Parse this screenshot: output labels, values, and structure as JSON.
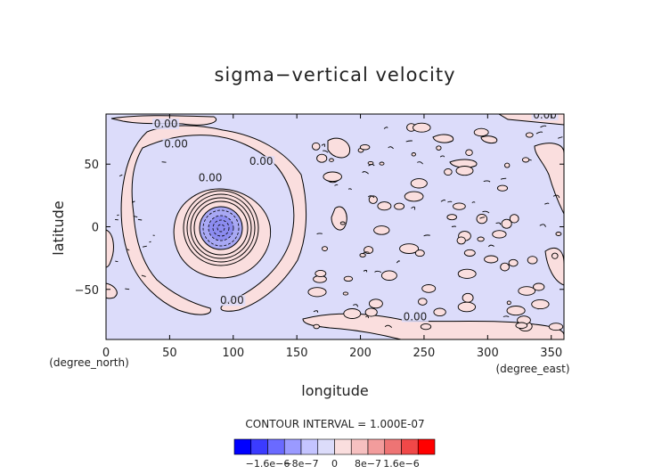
{
  "chart_data": {
    "type": "heatmap",
    "title": "sigma−vertical velocity",
    "xlabel": "longitude",
    "ylabel": "latitude",
    "x_unit": "(degree_east)",
    "y_unit": "(degree_north)",
    "xlim": [
      0,
      360
    ],
    "ylim": [
      -90,
      90
    ],
    "x_ticks": [
      0,
      50,
      100,
      150,
      200,
      250,
      300,
      350
    ],
    "y_ticks": [
      -50,
      0,
      50
    ],
    "x_tick_labels": [
      "0",
      "50",
      "100",
      "150",
      "200",
      "250",
      "300",
      "350"
    ],
    "y_tick_labels": [
      "−50",
      "0",
      "50"
    ],
    "contour_interval_text": "CONTOUR INTERVAL = 1.000E-07",
    "contour_labels": [
      {
        "text": "0.00",
        "lon": 47,
        "lat": 80
      },
      {
        "text": "0.00",
        "lon": 55,
        "lat": 64
      },
      {
        "text": "0.00",
        "lon": 122,
        "lat": 50
      },
      {
        "text": "0.00",
        "lon": 82,
        "lat": 37
      },
      {
        "text": "0.00",
        "lon": 345,
        "lat": 87
      },
      {
        "text": "0.00",
        "lon": 99,
        "lat": -61
      },
      {
        "text": "0.00",
        "lon": 243,
        "lat": -74
      }
    ],
    "vortex_center": {
      "lon": 90,
      "lat": 0
    },
    "colorbar": {
      "colors": [
        "#0000ff",
        "#3b3bff",
        "#6a6aff",
        "#9a9aff",
        "#c4c4ff",
        "#dcdcfa",
        "#fadede",
        "#f6c0c0",
        "#f29c9c",
        "#ee7474",
        "#f04848",
        "#ff0000"
      ],
      "tick_labels": [
        "−1.6e−6",
        "−8e−7",
        "0",
        "8e−7",
        "1.6e−6"
      ],
      "tick_values": [
        -1.6e-06,
        -8e-07,
        0,
        8e-07,
        1.6e-06
      ],
      "range": [
        -2.4e-06,
        2.4e-06
      ]
    }
  }
}
